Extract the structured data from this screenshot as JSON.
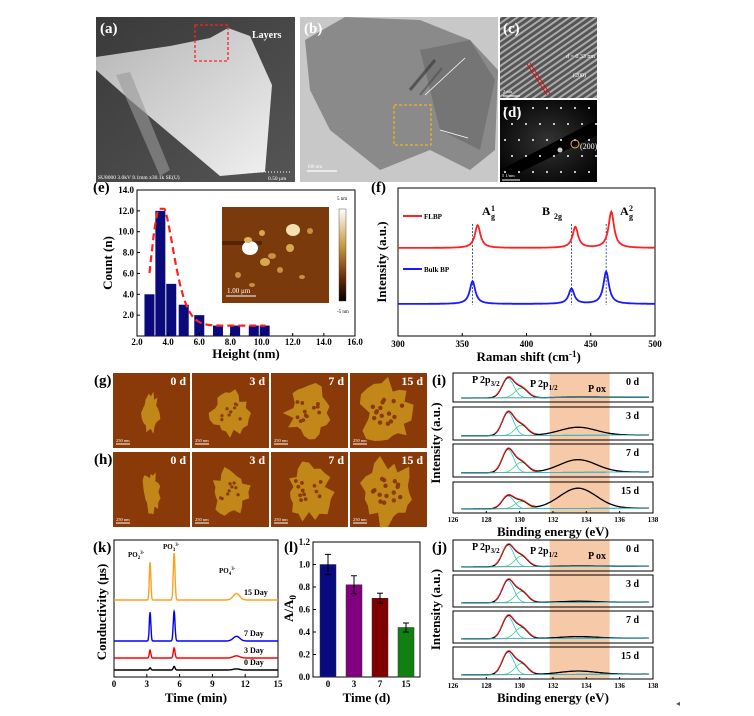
{
  "panels": {
    "a": {
      "label": "(a)",
      "annotation": "Layers",
      "footer": "SU8000 3.0kV 8.1mm x30.1k SE(U)",
      "scale": "0.50 μm"
    },
    "b": {
      "label": "(b)",
      "scale": "100 nm"
    },
    "c": {
      "label": "(c)",
      "spacing": "d = 0.33 nm",
      "plane": "(200)",
      "scale": "2 nm"
    },
    "d": {
      "label": "(d)",
      "spot": "(200)",
      "scale": "5 1/nm"
    },
    "g": {
      "label": "(g)",
      "scale": "250 nm",
      "days": [
        "0 d",
        "3 d",
        "7 d",
        "15 d"
      ]
    },
    "h": {
      "label": "(h)",
      "scale": "250 nm",
      "days": [
        "0 d",
        "3 d",
        "7 d",
        "15 d"
      ]
    },
    "e_inset": {
      "scale": "1.00 μm",
      "max": "5 nm",
      "min": "-5 nm"
    }
  },
  "colors": {
    "bar": "#0a0a7a",
    "fit": "#ff2020",
    "flbp": "#ff2020",
    "bulk": "#1a1aff",
    "pox": "#f5c09a"
  },
  "chart_data": [
    {
      "id": "e",
      "label": "(e)",
      "type": "bar",
      "xlabel": "Height (nm)",
      "ylabel": "Count (n)",
      "xlim": [
        2,
        16
      ],
      "ylim": [
        0,
        14
      ],
      "xticks": [
        "2.0",
        "4.0",
        "6.0",
        "8.0",
        "10.0",
        "12.0",
        "14.0",
        "16.0"
      ],
      "yticks": [
        "2.0",
        "4.0",
        "6.0",
        "8.0",
        "10.0",
        "12.0",
        "14.0"
      ],
      "x": [
        2.8,
        3.5,
        4.2,
        5.0,
        6.0,
        7.2,
        8.3,
        9.5,
        10.2
      ],
      "values": [
        4,
        12,
        5,
        3,
        2,
        1,
        1,
        1,
        1
      ],
      "fit": "lognormal (dashed)"
    },
    {
      "id": "f",
      "label": "(f)",
      "type": "line",
      "xlabel": "Raman shift (cm-1)",
      "xlabel_main": "Raman shift (cm",
      "xlabel_sup": "-1",
      "xlabel_end": ")",
      "ylabel": "Intensity (a.u.)",
      "xlim": [
        300,
        500
      ],
      "xticks": [
        "300",
        "350",
        "400",
        "450",
        "500"
      ],
      "peak_labels": [
        {
          "base": "A",
          "sup": "1",
          "sub": "g"
        },
        {
          "base": "B",
          "sup": "",
          "sub": "2g"
        },
        {
          "base": "A",
          "sup": "2",
          "sub": "g"
        }
      ],
      "series": [
        {
          "name": "FLBP",
          "peaks": [
            362,
            438,
            466
          ],
          "heights": [
            0.6,
            0.55,
            0.95
          ]
        },
        {
          "name": "Bulk BP",
          "peaks": [
            358,
            435,
            462
          ],
          "heights": [
            0.6,
            0.4,
            0.85
          ]
        }
      ],
      "reference_lines": [
        358,
        435,
        462
      ]
    },
    {
      "id": "i",
      "label": "(i)",
      "type": "line",
      "xlabel": "Binding energy (eV)",
      "ylabel": "Intensity (a.u.)",
      "xlim": [
        126,
        138
      ],
      "xticks": [
        "126",
        "128",
        "130",
        "132",
        "134",
        "136",
        "138"
      ],
      "shaded_region": [
        131.8,
        135.4
      ],
      "peak_names": {
        "p32": "P 2p",
        "p32_sub": "3/2",
        "p12": "P 2p",
        "p12_sub": "1/2",
        "ox": "P ox"
      },
      "series": [
        {
          "name": "0 d",
          "p32": 1.0,
          "p12": 0.5,
          "ox": 0.02
        },
        {
          "name": "3 d",
          "p32": 1.0,
          "p12": 0.45,
          "ox": 0.35
        },
        {
          "name": "7 d",
          "p32": 1.0,
          "p12": 0.45,
          "ox": 0.55
        },
        {
          "name": "15 d",
          "p32": 0.6,
          "p12": 0.35,
          "ox": 0.95
        }
      ]
    },
    {
      "id": "j",
      "label": "(j)",
      "type": "line",
      "xlabel": "Binding energy (eV)",
      "ylabel": "Intensity (a.u.)",
      "xlim": [
        126,
        138
      ],
      "xticks": [
        "126",
        "128",
        "130",
        "132",
        "134",
        "136",
        "138"
      ],
      "shaded_region": [
        131.8,
        135.4
      ],
      "peak_names": {
        "p32": "P 2p",
        "p32_sub": "3/2",
        "p12": "P 2p",
        "p12_sub": "1/2",
        "ox": "P ox"
      },
      "series": [
        {
          "name": "0 d",
          "p32": 1.0,
          "p12": 0.5,
          "ox": 0.02
        },
        {
          "name": "3 d",
          "p32": 1.0,
          "p12": 0.5,
          "ox": 0.05
        },
        {
          "name": "7 d",
          "p32": 1.0,
          "p12": 0.5,
          "ox": 0.08
        },
        {
          "name": "15 d",
          "p32": 1.0,
          "p12": 0.5,
          "ox": 0.15
        }
      ]
    },
    {
      "id": "k",
      "label": "(k)",
      "type": "line",
      "xlabel": "Time (min)",
      "ylabel": "Conductivity (μs)",
      "xlim": [
        0,
        15
      ],
      "xticks": [
        "0",
        "3",
        "6",
        "9",
        "12",
        "15"
      ],
      "ion_labels": [
        {
          "base": "PO",
          "sub": "2",
          "sup": "3-"
        },
        {
          "base": "PO",
          "sub": "3",
          "sup": "3-"
        },
        {
          "base": "PO",
          "sub": "4",
          "sup": "3-"
        }
      ],
      "peaks_min": [
        3.3,
        5.5,
        11.2
      ],
      "series": [
        {
          "name": "0 Day",
          "color": "#000000",
          "heights": [
            0.6,
            1.0,
            0.3
          ]
        },
        {
          "name": "3 Day",
          "color": "#ff0000",
          "heights": [
            2.2,
            2.8,
            0.6
          ]
        },
        {
          "name": "7 Day",
          "color": "#0000ff",
          "heights": [
            8.0,
            8.2,
            1.3
          ]
        },
        {
          "name": "15 Day",
          "color": "#ffa020",
          "heights": [
            10.5,
            13.0,
            1.8
          ]
        }
      ]
    },
    {
      "id": "l",
      "label": "(l)",
      "type": "bar",
      "xlabel": "Time (d)",
      "ylabel": "A/A0",
      "ylabel_main": "A/A",
      "ylabel_sub": "0",
      "ylim": [
        0,
        1.2
      ],
      "yticks": [
        "0.0",
        "0.2",
        "0.4",
        "0.6",
        "0.8",
        "1.0",
        "1.2"
      ],
      "categories": [
        "0",
        "3",
        "7",
        "15"
      ],
      "values": [
        1.0,
        0.82,
        0.7,
        0.44
      ],
      "errors": [
        0.09,
        0.08,
        0.045,
        0.04
      ],
      "colors": [
        "#0a0a80",
        "#800080",
        "#800000",
        "#108010"
      ]
    }
  ]
}
